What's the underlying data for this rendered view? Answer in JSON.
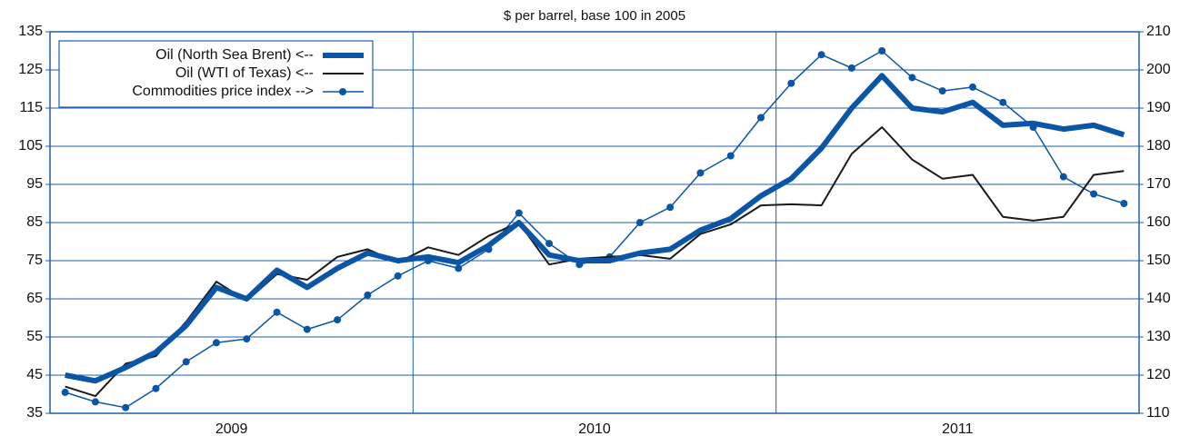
{
  "chart_data": {
    "type": "line",
    "title": "$ per barrel, base 100 in 2005",
    "categories": [
      "2009",
      null,
      null,
      null,
      null,
      null,
      null,
      null,
      null,
      null,
      null,
      null,
      "2010",
      null,
      null,
      null,
      null,
      null,
      null,
      null,
      null,
      null,
      null,
      null,
      "2011",
      null,
      null,
      null,
      null,
      null,
      null,
      null,
      null,
      null,
      null,
      null
    ],
    "ylim": [
      35,
      135
    ],
    "yticks": [
      35,
      45,
      55,
      65,
      75,
      85,
      95,
      105,
      115,
      125,
      135
    ],
    "y2lim": [
      110,
      210
    ],
    "y2ticks": [
      110,
      120,
      130,
      140,
      150,
      160,
      170,
      180,
      190,
      200,
      210
    ],
    "grid": true,
    "legend": "upper left",
    "series": [
      {
        "name": "Oil (North Sea Brent) <--",
        "color": "#0a55a5",
        "linewidth": 6,
        "values": [
          45,
          43.5,
          47,
          51,
          58,
          68,
          65,
          72.5,
          68,
          73,
          77,
          75,
          76,
          74.5,
          79,
          85,
          76.5,
          75,
          75,
          77,
          78,
          83,
          86,
          92,
          96.5,
          104.5,
          115,
          123.5,
          115,
          114,
          116.5,
          110.5,
          111,
          109.5,
          110.5,
          108
        ]
      },
      {
        "name": "Oil (WTI of Texas) <--",
        "color": "#1a1a1a",
        "linewidth": 2,
        "values": [
          42,
          39.5,
          48,
          50,
          59,
          69.5,
          64.5,
          71.5,
          70,
          76,
          78,
          74.5,
          78.5,
          76.5,
          81.5,
          85,
          74,
          75.5,
          76,
          76.5,
          75.5,
          82,
          84.5,
          89.5,
          89.8,
          89.5,
          103,
          110,
          101.5,
          96.5,
          97.5,
          86.5,
          85.5,
          86.5,
          97.5,
          98.5
        ]
      },
      {
        "name": "Commodities price index -->",
        "color": "#0a55a5",
        "linewidth": 1.5,
        "marker": "circle",
        "axis": "y2",
        "values": [
          115.5,
          113,
          111.5,
          116.5,
          123.5,
          128.5,
          129.5,
          136.5,
          132,
          134.5,
          141,
          146,
          150,
          148,
          153,
          162.5,
          154.5,
          149,
          151,
          160,
          164,
          173,
          177.5,
          187.5,
          196.5,
          204,
          200.5,
          205,
          198,
          194.5,
          195.5,
          191.5,
          185,
          172,
          167.5,
          165
        ]
      }
    ]
  }
}
